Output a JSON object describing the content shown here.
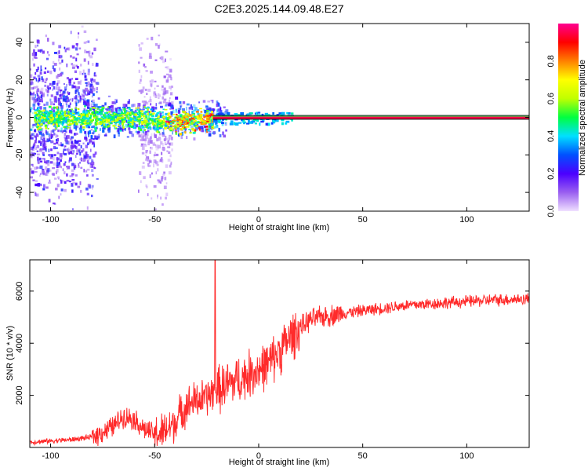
{
  "chart_data": [
    {
      "type": "heatmap",
      "title": "C2E3.2025.144.09.48.E27",
      "xlabel": "Height of straight line (km)",
      "ylabel": "Frequency (Hz)",
      "xlim": [
        -110,
        130
      ],
      "ylim": [
        -50,
        50
      ],
      "xticks": [
        -100,
        -50,
        0,
        50,
        100
      ],
      "yticks": [
        -40,
        -20,
        0,
        20,
        40
      ],
      "colorbar": {
        "label": "Normalized spectral amplitude",
        "range": [
          0,
          1
        ],
        "ticks": [
          "0.0",
          "0.2",
          "0.4",
          "0.6",
          "0.8"
        ],
        "colormap": [
          "#f0e0ff",
          "#9a5ff0",
          "#4b00ff",
          "#0050ff",
          "#00e0ff",
          "#00ff40",
          "#c0ff00",
          "#ffff00",
          "#ff8000",
          "#ff0000",
          "#ff0090"
        ]
      },
      "features": {
        "tone_frequency_hz": 0,
        "tone_start_km": -22,
        "tone_amplitude": 0.95,
        "noise_region_km": [
          -110,
          -22
        ],
        "band_edges_hz": [
          -1,
          1
        ]
      }
    },
    {
      "type": "line",
      "xlabel": "Height of straight line (km)",
      "ylabel": "SNR (10 * v/v)",
      "xlim": [
        -110,
        130
      ],
      "ylim": [
        0,
        7200
      ],
      "xticks": [
        -100,
        -50,
        0,
        50,
        100
      ],
      "yticks": [
        2000,
        4000,
        6000
      ],
      "color": "#ff2a2a",
      "series": [
        {
          "x": [
            -110,
            -100,
            -90,
            -80,
            -75,
            -70,
            -65,
            -60,
            -55,
            -50,
            -45,
            -40,
            -35,
            -30,
            -25,
            -22,
            -20,
            -15,
            -10,
            -5,
            0,
            5,
            10,
            15,
            20,
            25,
            30,
            40,
            50,
            60,
            70,
            80,
            90,
            100,
            110,
            120,
            130
          ],
          "y": [
            200,
            250,
            300,
            400,
            600,
            800,
            1200,
            1100,
            700,
            500,
            600,
            1000,
            1600,
            1800,
            1900,
            2100,
            2200,
            2400,
            2600,
            2800,
            3000,
            3200,
            3700,
            4200,
            4600,
            4900,
            5000,
            5150,
            5250,
            5350,
            5450,
            5500,
            5550,
            5600,
            5650,
            5680,
            5700
          ]
        }
      ],
      "spike": {
        "x": -21,
        "y": 7200
      }
    }
  ]
}
